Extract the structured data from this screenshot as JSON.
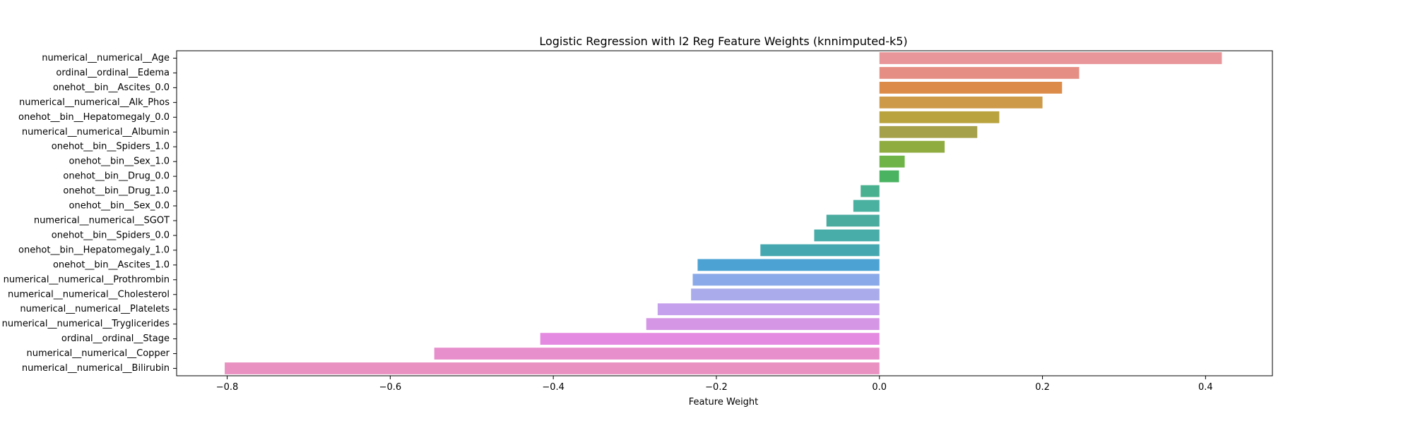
{
  "chart_data": {
    "type": "bar",
    "orientation": "horizontal",
    "title": "Logistic Regression with l2 Reg Feature Weights (knnimputed-k5)",
    "xlabel": "Feature Weight",
    "ylabel": "",
    "xlim": [
      -0.862,
      0.482
    ],
    "xticks": [
      -0.8,
      -0.6,
      -0.4,
      -0.2,
      0.0,
      0.2,
      0.4
    ],
    "xtick_labels": [
      "−0.8",
      "−0.6",
      "−0.4",
      "−0.2",
      "0.0",
      "0.2",
      "0.4"
    ],
    "grid": false,
    "legend": "none",
    "categories": [
      "numerical__numerical__Age",
      "ordinal__ordinal__Edema",
      "onehot__bin__Ascites_0.0",
      "numerical__numerical__Alk_Phos",
      "onehot__bin__Hepatomegaly_0.0",
      "numerical__numerical__Albumin",
      "onehot__bin__Spiders_1.0",
      "onehot__bin__Sex_1.0",
      "onehot__bin__Drug_0.0",
      "onehot__bin__Drug_1.0",
      "onehot__bin__Sex_0.0",
      "numerical__numerical__SGOT",
      "onehot__bin__Spiders_0.0",
      "onehot__bin__Hepatomegaly_1.0",
      "onehot__bin__Ascites_1.0",
      "numerical__numerical__Prothrombin",
      "numerical__numerical__Cholesterol",
      "numerical__numerical__Platelets",
      "numerical__numerical__Tryglicerides",
      "ordinal__ordinal__Stage",
      "numerical__numerical__Copper",
      "numerical__numerical__Bilirubin"
    ],
    "values": [
      0.42,
      0.245,
      0.224,
      0.2,
      0.147,
      0.12,
      0.08,
      0.031,
      0.024,
      -0.023,
      -0.032,
      -0.065,
      -0.08,
      -0.146,
      -0.223,
      -0.229,
      -0.231,
      -0.272,
      -0.286,
      -0.416,
      -0.546,
      -0.803
    ],
    "colors": [
      "#e8969a",
      "#e58f84",
      "#dc8b48",
      "#cd9a49",
      "#b9a33e",
      "#a5a04a",
      "#8fac40",
      "#6eb447",
      "#4ab361",
      "#49b18f",
      "#4ab09f",
      "#4aab9f",
      "#48ada9",
      "#45a8b0",
      "#4ca3d3",
      "#8aa9e8",
      "#a9abeb",
      "#c5a0ec",
      "#d496e5",
      "#e48ae0",
      "#e78fcc",
      "#e991c1"
    ]
  }
}
